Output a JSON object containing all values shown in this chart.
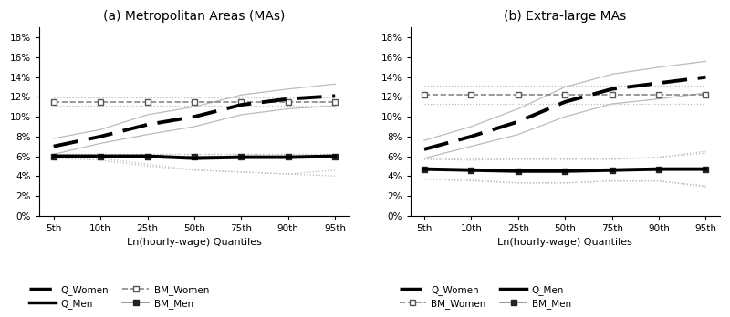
{
  "quantiles": [
    "5th",
    "10th",
    "25th",
    "50th",
    "75th",
    "90th",
    "95th"
  ],
  "x": [
    0,
    1,
    2,
    3,
    4,
    5,
    6
  ],
  "panel_a": {
    "title": "(a) Metropolitan Areas (MAs)",
    "Q_Women": [
      0.07,
      0.08,
      0.092,
      0.1,
      0.112,
      0.118,
      0.121
    ],
    "Q_Women_lo": [
      0.062,
      0.073,
      0.082,
      0.09,
      0.102,
      0.108,
      0.111
    ],
    "Q_Women_hi": [
      0.078,
      0.087,
      0.102,
      0.11,
      0.122,
      0.128,
      0.133
    ],
    "Q_Men": [
      0.06,
      0.06,
      0.06,
      0.058,
      0.059,
      0.059,
      0.06
    ],
    "Q_Men_lo": [
      0.058,
      0.058,
      0.052,
      0.046,
      0.044,
      0.042,
      0.046
    ],
    "Q_Men_hi": [
      0.062,
      0.062,
      0.062,
      0.062,
      0.062,
      0.062,
      0.062
    ],
    "BM_Women": [
      0.115,
      0.115,
      0.115,
      0.115,
      0.115,
      0.115,
      0.115
    ],
    "BM_Women_lo": [
      0.111,
      0.111,
      0.111,
      0.111,
      0.111,
      0.111,
      0.111
    ],
    "BM_Women_hi": [
      0.119,
      0.119,
      0.119,
      0.119,
      0.119,
      0.119,
      0.119
    ],
    "BM_Men": [
      0.06,
      0.06,
      0.06,
      0.06,
      0.06,
      0.06,
      0.06
    ],
    "BM_Men_lo": [
      0.058,
      0.056,
      0.05,
      0.046,
      0.044,
      0.042,
      0.04
    ],
    "BM_Men_hi": [
      0.062,
      0.062,
      0.062,
      0.062,
      0.062,
      0.062,
      0.062
    ]
  },
  "panel_b": {
    "title": "(b) Extra-large MAs",
    "Q_Women": [
      0.067,
      0.08,
      0.095,
      0.115,
      0.128,
      0.134,
      0.14
    ],
    "Q_Women_lo": [
      0.058,
      0.07,
      0.082,
      0.1,
      0.113,
      0.118,
      0.124
    ],
    "Q_Women_hi": [
      0.076,
      0.09,
      0.108,
      0.13,
      0.143,
      0.15,
      0.156
    ],
    "Q_Men": [
      0.047,
      0.046,
      0.045,
      0.045,
      0.046,
      0.047,
      0.047
    ],
    "Q_Men_lo": [
      0.037,
      0.036,
      0.033,
      0.033,
      0.035,
      0.035,
      0.029
    ],
    "Q_Men_hi": [
      0.057,
      0.056,
      0.057,
      0.057,
      0.057,
      0.059,
      0.065
    ],
    "BM_Women": [
      0.122,
      0.122,
      0.122,
      0.122,
      0.122,
      0.122,
      0.122
    ],
    "BM_Women_lo": [
      0.113,
      0.113,
      0.113,
      0.113,
      0.113,
      0.113,
      0.113
    ],
    "BM_Women_hi": [
      0.131,
      0.131,
      0.131,
      0.131,
      0.131,
      0.131,
      0.131
    ],
    "BM_Men": [
      0.047,
      0.046,
      0.045,
      0.045,
      0.046,
      0.047,
      0.047
    ],
    "BM_Men_lo": [
      0.037,
      0.035,
      0.033,
      0.033,
      0.035,
      0.035,
      0.03
    ],
    "BM_Men_hi": [
      0.057,
      0.057,
      0.057,
      0.057,
      0.057,
      0.059,
      0.063
    ]
  },
  "xlabel": "Ln(hourly-wage) Quantiles",
  "ylim": [
    0,
    0.19
  ],
  "yticks": [
    0.0,
    0.02,
    0.04,
    0.06,
    0.08,
    0.1,
    0.12,
    0.14,
    0.16,
    0.18
  ],
  "ytick_labels": [
    "0%",
    "2%",
    "4%",
    "6%",
    "8%",
    "10%",
    "12%",
    "14%",
    "16%",
    "18%"
  ]
}
